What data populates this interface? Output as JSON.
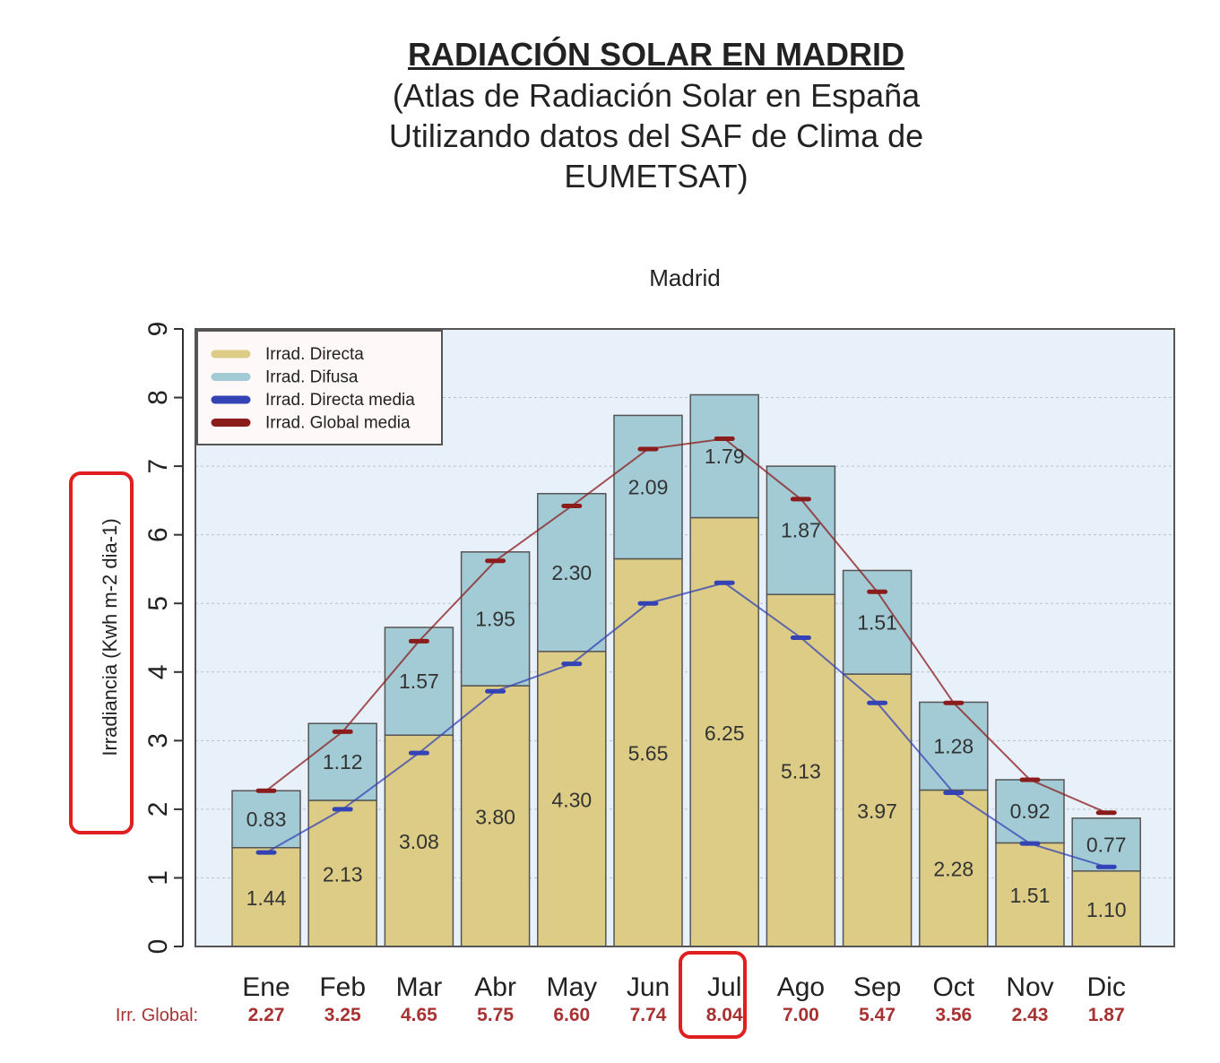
{
  "header": {
    "title": "RADIACIÓN SOLAR EN MADRID",
    "subtitle_lines": [
      "(Atlas de Radiación Solar en España",
      "Utilizando datos del SAF de Clima de",
      "EUMETSAT)"
    ]
  },
  "chart_data": {
    "type": "bar",
    "stacked": true,
    "title": "Madrid",
    "ylabel": "Irradiancia (Kwh m-2 dia-1)",
    "ylim": [
      0,
      9
    ],
    "yticks": [
      "0",
      "1",
      "2",
      "3",
      "4",
      "5",
      "6",
      "7",
      "8",
      "9"
    ],
    "grid": true,
    "legend_position": "top-left",
    "categories": [
      "Ene",
      "Feb",
      "Mar",
      "Abr",
      "May",
      "Jun",
      "Jul",
      "Ago",
      "Sep",
      "Oct",
      "Nov",
      "Dic"
    ],
    "series": [
      {
        "name": "Irrad. Directa",
        "color": "#ddcc85",
        "values": [
          1.44,
          2.13,
          3.08,
          3.8,
          4.3,
          5.65,
          6.25,
          5.13,
          3.97,
          2.28,
          1.51,
          1.1
        ],
        "labels": [
          "1.44",
          "2.13",
          "3.08",
          "3.80",
          "4.30",
          "5.65",
          "6.25",
          "5.13",
          "3.97",
          "2.28",
          "1.51",
          "1.10"
        ]
      },
      {
        "name": "Irrad. Difusa",
        "color": "#a2cbd6",
        "values": [
          0.83,
          1.12,
          1.57,
          1.95,
          2.3,
          2.09,
          1.79,
          1.87,
          1.51,
          1.28,
          0.92,
          0.77
        ],
        "labels": [
          "0.83",
          "1.12",
          "1.57",
          "1.95",
          "2.30",
          "2.09",
          "1.79",
          "1.87",
          "1.51",
          "1.28",
          "0.92",
          "0.77"
        ]
      }
    ],
    "lines": [
      {
        "name": "Irrad. Directa media",
        "color": "#3343b5",
        "values": [
          1.37,
          2.0,
          2.82,
          3.72,
          4.12,
          5.0,
          5.3,
          4.5,
          3.55,
          2.24,
          1.5,
          1.16
        ]
      },
      {
        "name": "Irrad. Global media",
        "color": "#8b1c1c",
        "values": [
          2.27,
          3.13,
          4.45,
          5.62,
          6.42,
          7.25,
          7.4,
          6.52,
          5.17,
          3.55,
          2.43,
          1.95
        ]
      }
    ],
    "footer": {
      "label": "Irr. Global:",
      "color": "#a83232",
      "values": [
        "2.27",
        "3.25",
        "4.65",
        "5.75",
        "6.60",
        "7.74",
        "8.04",
        "7.00",
        "5.47",
        "3.56",
        "2.43",
        "1.87"
      ]
    },
    "highlights": [
      "ylabel",
      "Jul"
    ],
    "highlight_color": "#e02020"
  }
}
